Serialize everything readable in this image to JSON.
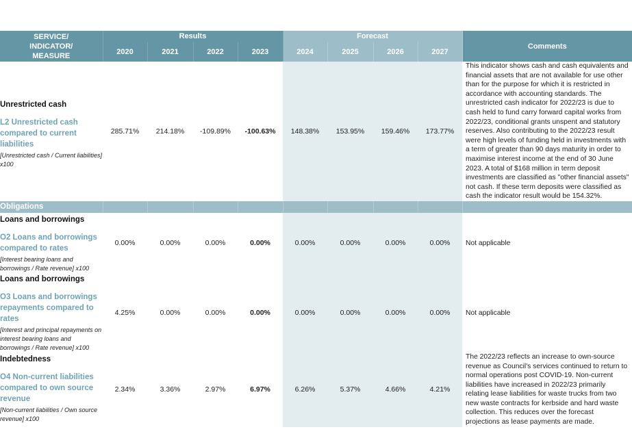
{
  "header": {
    "measure_label": "SERVICE/ INDICATOR/ MEASURE",
    "results_label": "Results",
    "forecast_label": "Forecast",
    "comments_label": "Comments",
    "result_years": [
      "2020",
      "2021",
      "2022",
      "2023"
    ],
    "forecast_years": [
      "2024",
      "2025",
      "2026",
      "2027"
    ]
  },
  "colors": {
    "header": "#6596a6",
    "forecast_header": "#9dbdc8",
    "forecast_cell": "#e3ecef",
    "indicator_text": "#6fa3b5"
  },
  "rows": [
    {
      "category": "Unrestricted cash",
      "indicator": "L2 Unrestricted cash compared to current liabilities",
      "formula": "[Unrestricted cash / Current liabilities] x100",
      "values": [
        "285.71%",
        "214.18%",
        "-109.89%",
        "-100.63%",
        "148.38%",
        "153.95%",
        "159.46%",
        "173.77%"
      ],
      "comment": "This indicator shows cash and cash equivalents and financial assets that are not available for use other than for the purpose for which it is restricted in accordance with accounting standards.  The unrestricted cash indicator for 2022/23 is due to cash held to fund carry forward capital works from 2022/23, conditional grants unspent and statutory reserves. Also contributing to the 2022/23 result were high levels of funding held in investments with a term of greater than 90 days maturity in order to maximise interest income at the end of 30 June 2023.  A total of $168 million in term deposit investments are classified as \"other financial assets\" not cash. If these term deposits were classified as cash the indicator result would be 154.32%."
    }
  ],
  "section": "Obligations",
  "obligations": [
    {
      "category": "Loans and borrowings",
      "indicator": "O2 Loans and borrowings compared to rates",
      "formula": "[Interest bearing loans and borrowings / Rate revenue] x100",
      "values": [
        "0.00%",
        "0.00%",
        "0.00%",
        "0.00%",
        "0.00%",
        "0.00%",
        "0.00%",
        "0.00%"
      ],
      "comment": "Not applicable"
    },
    {
      "category": "Loans and borrowings",
      "indicator": "O3 Loans and borrowings repayments compared to rates",
      "formula": "[Interest and principal repayments on interest bearing loans and borrowings / Rate revenue] x100",
      "values": [
        "4.25%",
        "0.00%",
        "0.00%",
        "0.00%",
        "0.00%",
        "0.00%",
        "0.00%",
        "0.00%"
      ],
      "comment": "Not applicable"
    },
    {
      "category": "Indebtedness",
      "indicator": "O4 Non-current liabilities compared to own source revenue",
      "formula": "[Non-current liabilities / Own source revenue] x100",
      "values": [
        "2.34%",
        "3.36%",
        "2.97%",
        "6.97%",
        "6.26%",
        "5.37%",
        "4.66%",
        "4.21%"
      ],
      "comment": "The 2022/23 reflects an increase to own-source revenue as Council's services continued to return to normal operations post COVID-19. Non-current liabilities have increased in 2022/23 primarily relating lease liabilities for waste trucks from two new waste contracts for kerbside and hard waste collection.  This reduces over the forecast projections as lease payments are made."
    }
  ]
}
